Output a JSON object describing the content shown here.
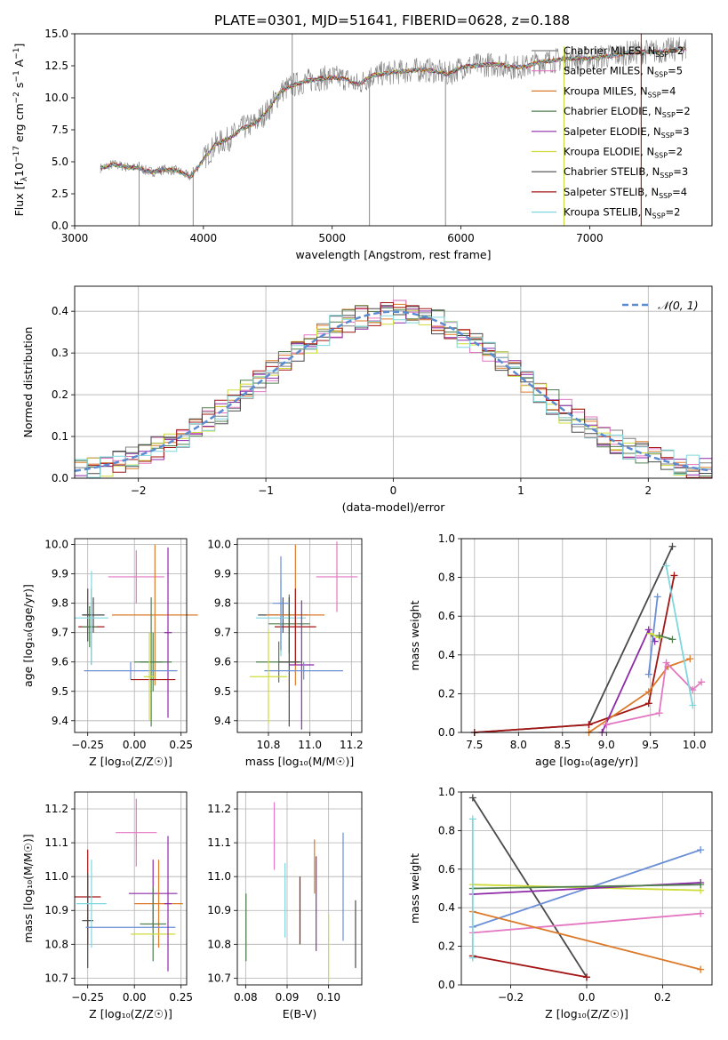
{
  "figure_title": "PLATE=0301, MJD=51641, FIBERID=0628, z=0.188",
  "palette": {
    "Chabrier MILES": "#808080",
    "Salpeter MILES": "#e377c2",
    "Kroupa MILES": "#dd7a2a",
    "Chabrier ELODIE": "#4f7f4f",
    "Salpeter ELODIE": "#8e2aa8",
    "Kroupa ELODIE": "#cddc39",
    "Chabrier STELIB": "#4a4a4a",
    "Salpeter STELIB": "#a31515",
    "Kroupa STELIB": "#7fd6dd",
    "Chabrier MILES (2)": "#6a8fd6",
    "gaussian": "#5b8bd0"
  },
  "chart_data": [
    {
      "id": "spectrum",
      "type": "line",
      "title": "PLATE=0301, MJD=51641, FIBERID=0628, z=0.188",
      "xlabel": "wavelength [Angstrom, rest frame]",
      "ylabel_parts": [
        "Flux [f",
        "λ",
        "10",
        "−17",
        " erg cm",
        "−2",
        " s",
        "−1",
        " A",
        "−1",
        "]"
      ],
      "xlim": [
        3000,
        7950
      ],
      "ylim": [
        0,
        15
      ],
      "xticks": [
        3000,
        4000,
        5000,
        6000,
        7000
      ],
      "xtick_labels": [
        "3000",
        "4000",
        "5000",
        "6000",
        "7000"
      ],
      "yticks": [
        0,
        2.5,
        5,
        7.5,
        10,
        12.5,
        15
      ],
      "ytick_labels": [
        "0.0",
        "2.5",
        "5.0",
        "7.5",
        "10.0",
        "12.5",
        "15.0"
      ],
      "legend_position": "right",
      "legend": [
        {
          "model": "Chabrier MILES",
          "n": "2"
        },
        {
          "model": "Salpeter MILES",
          "n": "5"
        },
        {
          "model": "Kroupa MILES",
          "n": "4"
        },
        {
          "model": "Chabrier ELODIE",
          "n": "2"
        },
        {
          "model": "Salpeter ELODIE",
          "n": "3"
        },
        {
          "model": "Kroupa ELODIE",
          "n": "2"
        },
        {
          "model": "Chabrier STELIB",
          "n": "3"
        },
        {
          "model": "Salpeter STELIB",
          "n": "4"
        },
        {
          "model": "Kroupa STELIB",
          "n": "2"
        }
      ],
      "legend_colors": [
        "#808080",
        "#e377c2",
        "#dd7a2a",
        "#4f7f4f",
        "#8e2aa8",
        "#cddc39",
        "#4a4a4a",
        "#a31515",
        "#7fd6dd"
      ],
      "model_curve": {
        "x": [
          3200,
          3300,
          3400,
          3500,
          3600,
          3700,
          3800,
          3900,
          4000,
          4100,
          4200,
          4300,
          4400,
          4500,
          4600,
          4700,
          4800,
          4900,
          5000,
          5100,
          5200,
          5300,
          5400,
          5500,
          5600,
          5700,
          5800,
          5900,
          6000,
          6100,
          6200,
          6300,
          6400,
          6500,
          6600,
          6700,
          6800,
          6900,
          7000,
          7100,
          7200,
          7300,
          7400,
          7500,
          7600,
          7700
        ],
        "y": [
          4.5,
          4.8,
          4.6,
          4.5,
          4.2,
          4.4,
          4.3,
          3.8,
          5.2,
          6.4,
          6.8,
          7.6,
          8.0,
          9.0,
          10.5,
          11.0,
          11.3,
          11.5,
          11.6,
          11.5,
          11.0,
          11.7,
          11.9,
          12.0,
          12.1,
          12.2,
          12.1,
          11.8,
          12.4,
          12.5,
          12.6,
          12.6,
          12.4,
          12.4,
          12.8,
          12.9,
          13.0,
          13.1,
          13.1,
          13.2,
          13.3,
          13.5,
          13.6,
          13.6,
          13.7,
          13.8
        ]
      },
      "vertical_spikes_x": [
        3500,
        3920,
        4690,
        5290,
        5880,
        6800,
        7400
      ],
      "data_range": [
        3200,
        7750
      ]
    },
    {
      "id": "residual-histogram",
      "type": "histogram",
      "xlabel": "(data-model)/error",
      "ylabel": "Normed distribution",
      "xlim": [
        -2.5,
        2.5
      ],
      "ylim": [
        0,
        0.46
      ],
      "xticks": [
        -2,
        -1,
        0,
        1,
        2
      ],
      "xtick_labels": [
        "−2",
        "−1",
        "0",
        "1",
        "2"
      ],
      "yticks": [
        0,
        0.1,
        0.2,
        0.3,
        0.4
      ],
      "ytick_labels": [
        "0.0",
        "0.1",
        "0.2",
        "0.3",
        "0.4"
      ],
      "bin_width": 0.1,
      "legend_label": "𝒩(0, 1)",
      "legend_position": "top-right",
      "grid": true
    },
    {
      "id": "age-vs-Z",
      "type": "errorbar",
      "xlabel": "Z [log₁₀(Z/Z☉)]",
      "ylabel": "age  [log₁₀(age/yr)]",
      "xlim": [
        -0.32,
        0.28
      ],
      "ylim": [
        9.36,
        10.02
      ],
      "xticks": [
        -0.25,
        0,
        0.25
      ],
      "xtick_labels": [
        "−0.25",
        "0.00",
        "0.25"
      ],
      "yticks": [
        9.4,
        9.5,
        9.6,
        9.7,
        9.8,
        9.9,
        10.0
      ],
      "ytick_labels": [
        "9.4",
        "9.5",
        "9.6",
        "9.7",
        "9.8",
        "9.9",
        "10.0"
      ],
      "points": [
        {
          "x": -0.25,
          "xerr": 0.03,
          "y": 9.76,
          "yerr": 0.09,
          "color": "#4a4a4a"
        },
        {
          "x": -0.23,
          "xerr": 0.07,
          "y": 9.72,
          "yerr": 0.13,
          "color": "#a31515"
        },
        {
          "x": -0.24,
          "xerr": 0.04,
          "y": 9.72,
          "yerr": 0.07,
          "color": "#4f7f4f"
        },
        {
          "x": -0.22,
          "xerr": 0.06,
          "y": 9.76,
          "yerr": 0.06,
          "color": "#4a4a4a"
        },
        {
          "x": -0.23,
          "xerr": 0.09,
          "y": 9.75,
          "yerr": 0.16,
          "color": "#7fd6dd"
        },
        {
          "x": 0.01,
          "xerr": 0.15,
          "y": 9.89,
          "yerr": 0.09,
          "color": "#e377c2"
        },
        {
          "x": 0.11,
          "xerr": 0.23,
          "y": 9.76,
          "yerr": 0.24,
          "color": "#dd7a2a"
        },
        {
          "x": 0.1,
          "xerr": 0.1,
          "y": 9.6,
          "yerr": 0.1,
          "color": "#4f7f4f"
        },
        {
          "x": 0.09,
          "xerr": 0.06,
          "y": 9.6,
          "yerr": 0.22,
          "color": "#4f7f4f"
        },
        {
          "x": 0.18,
          "xerr": 0.02,
          "y": 9.7,
          "yerr": 0.29,
          "color": "#8e2aa8"
        },
        {
          "x": -0.02,
          "xerr": 0.25,
          "y": 9.57,
          "yerr": 0.03,
          "color": "#6a8fd6"
        },
        {
          "x": 0.1,
          "xerr": 0.12,
          "y": 9.54,
          "yerr": 0.0,
          "color": "#a31515"
        },
        {
          "x": 0.08,
          "xerr": 0.03,
          "y": 9.55,
          "yerr": 0.15,
          "color": "#cddc39"
        }
      ]
    },
    {
      "id": "age-vs-mass",
      "type": "errorbar",
      "xlabel": "mass [log₁₀(M/M☉)]",
      "ylabel": "",
      "xlim": [
        10.65,
        11.25
      ],
      "ylim": [
        9.36,
        10.02
      ],
      "xticks": [
        10.8,
        11.0,
        11.2
      ],
      "xtick_labels": [
        "10.8",
        "11.0",
        "11.2"
      ],
      "yticks": [
        9.4,
        9.5,
        9.6,
        9.7,
        9.8,
        9.9,
        10.0
      ],
      "ytick_labels": [
        "9.4",
        "9.5",
        "9.6",
        "9.7",
        "9.8",
        "9.9",
        "10.0"
      ],
      "points": [
        {
          "x": 11.13,
          "xerr": 0.1,
          "y": 9.89,
          "yerr": 0.12,
          "color": "#e377c2"
        },
        {
          "x": 10.87,
          "xerr": 0.12,
          "y": 9.76,
          "yerr": 0.06,
          "color": "#4a4a4a"
        },
        {
          "x": 10.93,
          "xerr": 0.14,
          "y": 9.76,
          "yerr": 0.24,
          "color": "#dd7a2a"
        },
        {
          "x": 10.9,
          "xerr": 0.1,
          "y": 9.73,
          "yerr": 0.1,
          "color": "#4f7f4f"
        },
        {
          "x": 10.86,
          "xerr": 0.12,
          "y": 9.75,
          "yerr": 0.13,
          "color": "#7fd6dd"
        },
        {
          "x": 10.93,
          "xerr": 0.1,
          "y": 9.72,
          "yerr": 0.13,
          "color": "#a31515"
        },
        {
          "x": 10.85,
          "xerr": 0.11,
          "y": 9.6,
          "yerr": 0.07,
          "color": "#4f7f4f"
        },
        {
          "x": 10.9,
          "xerr": 0.05,
          "y": 9.6,
          "yerr": 0.22,
          "color": "#4a4a4a"
        },
        {
          "x": 10.96,
          "xerr": 0.06,
          "y": 9.59,
          "yerr": 0.22,
          "color": "#8e2aa8"
        },
        {
          "x": 10.97,
          "xerr": 0.19,
          "y": 9.57,
          "yerr": 0.03,
          "color": "#6a8fd6"
        },
        {
          "x": 10.8,
          "xerr": 0.09,
          "y": 9.55,
          "yerr": 0.16,
          "color": "#cddc39"
        },
        {
          "x": 10.86,
          "xerr": 0.04,
          "y": 9.8,
          "yerr": 0.16,
          "color": "#6a8fd6"
        }
      ]
    },
    {
      "id": "mass-weight-vs-age",
      "type": "line",
      "xlabel": "age  [log₁₀(age/yr)]",
      "ylabel": "mass weight",
      "xlim": [
        7.35,
        10.2
      ],
      "ylim": [
        0,
        1.0
      ],
      "xticks": [
        7.5,
        8.0,
        8.5,
        9.0,
        9.5,
        10.0
      ],
      "xtick_labels": [
        "7.5",
        "8.0",
        "8.5",
        "9.0",
        "9.5",
        "10.0"
      ],
      "yticks": [
        0,
        0.2,
        0.4,
        0.6,
        0.8,
        1.0
      ],
      "ytick_labels": [
        "0.0",
        "0.2",
        "0.4",
        "0.6",
        "0.8",
        "1.0"
      ],
      "series": [
        {
          "color": "#4a4a4a",
          "x": [
            7.5,
            8.8,
            9.75
          ],
          "y": [
            0.0,
            0.04,
            0.96
          ]
        },
        {
          "color": "#a31515",
          "x": [
            7.5,
            8.8,
            9.48,
            9.77
          ],
          "y": [
            0.0,
            0.04,
            0.15,
            0.81
          ]
        },
        {
          "color": "#dd7a2a",
          "x": [
            8.8,
            9.48,
            9.7,
            9.95
          ],
          "y": [
            0.0,
            0.21,
            0.34,
            0.38
          ]
        },
        {
          "color": "#8e2aa8",
          "x": [
            8.95,
            9.48,
            9.55
          ],
          "y": [
            0.0,
            0.53,
            0.47
          ]
        },
        {
          "color": "#e377c2",
          "x": [
            9.0,
            9.6,
            9.68,
            9.98,
            10.08
          ],
          "y": [
            0.04,
            0.1,
            0.36,
            0.22,
            0.26
          ]
        },
        {
          "color": "#7fd6dd",
          "x": [
            9.68,
            9.98
          ],
          "y": [
            0.86,
            0.14
          ]
        },
        {
          "color": "#6a8fd6",
          "x": [
            9.48,
            9.58
          ],
          "y": [
            0.3,
            0.7
          ]
        },
        {
          "color": "#cddc39",
          "x": [
            9.5,
            9.6
          ],
          "y": [
            0.51,
            0.49
          ]
        },
        {
          "color": "#4f7f4f",
          "x": [
            9.6,
            9.75
          ],
          "y": [
            0.5,
            0.48
          ]
        }
      ]
    },
    {
      "id": "mass-vs-Z",
      "type": "errorbar",
      "xlabel": "Z [log₁₀(Z/Z☉)]",
      "ylabel": "mass [log₁₀(M/M☉)]",
      "xlim": [
        -0.32,
        0.28
      ],
      "ylim": [
        10.68,
        11.25
      ],
      "xticks": [
        -0.25,
        0,
        0.25
      ],
      "xtick_labels": [
        "−0.25",
        "0.00",
        "0.25"
      ],
      "yticks": [
        10.7,
        10.8,
        10.9,
        11.0,
        11.1,
        11.2
      ],
      "ytick_labels": [
        "10.7",
        "10.8",
        "10.9",
        "11.0",
        "11.1",
        "11.2"
      ],
      "points": [
        {
          "x": 0.01,
          "xerr": 0.11,
          "y": 11.13,
          "yerr": 0.1,
          "color": "#e377c2"
        },
        {
          "x": -0.25,
          "xerr": 0.07,
          "y": 10.94,
          "yerr": 0.14,
          "color": "#a31515"
        },
        {
          "x": -0.25,
          "xerr": 0.03,
          "y": 10.87,
          "yerr": 0.14,
          "color": "#4a4a4a"
        },
        {
          "x": -0.23,
          "xerr": 0.08,
          "y": 10.92,
          "yerr": 0.13,
          "color": "#7fd6dd"
        },
        {
          "x": 0.1,
          "xerr": 0.13,
          "y": 10.95,
          "yerr": 0.1,
          "color": "#8e2aa8"
        },
        {
          "x": 0.13,
          "xerr": 0.13,
          "y": 10.92,
          "yerr": 0.13,
          "color": "#dd7a2a"
        },
        {
          "x": -0.02,
          "xerr": 0.24,
          "y": 10.85,
          "yerr": 0.0,
          "color": "#6a8fd6"
        },
        {
          "x": 0.1,
          "xerr": 0.07,
          "y": 10.86,
          "yerr": 0.11,
          "color": "#4f7f4f"
        },
        {
          "x": 0.1,
          "xerr": 0.12,
          "y": 10.83,
          "yerr": 0.0,
          "color": "#cddc39"
        },
        {
          "x": 0.18,
          "xerr": 0.02,
          "y": 10.92,
          "yerr": 0.2,
          "color": "#8e2aa8"
        }
      ]
    },
    {
      "id": "mass-vs-EBV",
      "type": "errorbar",
      "xlabel": "E(B-V)",
      "ylabel": "",
      "xlim": [
        0.078,
        0.108
      ],
      "ylim": [
        10.68,
        11.25
      ],
      "xticks": [
        0.08,
        0.09,
        0.1
      ],
      "xtick_labels": [
        "0.08",
        "0.09",
        "0.10"
      ],
      "yticks": [
        10.7,
        10.8,
        10.9,
        11.0,
        11.1,
        11.2
      ],
      "ytick_labels": [
        "10.7",
        "10.8",
        "10.9",
        "11.0",
        "11.1",
        "11.2"
      ],
      "points": [
        {
          "x": 0.0801,
          "xerr": 0,
          "y": 10.85,
          "yerr": 0.1,
          "color": "#4f7f4f"
        },
        {
          "x": 0.0869,
          "xerr": 0,
          "y": 11.12,
          "yerr": 0.1,
          "color": "#e377c2"
        },
        {
          "x": 0.0895,
          "xerr": 0,
          "y": 10.93,
          "yerr": 0.11,
          "color": "#7fd6dd"
        },
        {
          "x": 0.0931,
          "xerr": 0,
          "y": 10.9,
          "yerr": 0.1,
          "color": "#a31515"
        },
        {
          "x": 0.0966,
          "xerr": 0,
          "y": 11.03,
          "yerr": 0.08,
          "color": "#dd7a2a"
        },
        {
          "x": 0.097,
          "xerr": 0,
          "y": 10.92,
          "yerr": 0.14,
          "color": "#8e2aa8"
        },
        {
          "x": 0.1,
          "xerr": 0,
          "y": 10.79,
          "yerr": 0.1,
          "color": "#cddc39"
        },
        {
          "x": 0.1035,
          "xerr": 0,
          "y": 10.97,
          "yerr": 0.16,
          "color": "#6a8fd6"
        },
        {
          "x": 0.1065,
          "xerr": 0,
          "y": 10.83,
          "yerr": 0.1,
          "color": "#4a4a4a"
        }
      ]
    },
    {
      "id": "mass-weight-vs-Z",
      "type": "line",
      "xlabel": "Z [log₁₀(Z/Z☉)]",
      "ylabel": "mass weight",
      "xlim": [
        -0.33,
        0.33
      ],
      "ylim": [
        0,
        1.0
      ],
      "xticks": [
        -0.2,
        0,
        0.2
      ],
      "xtick_labels": [
        "−0.2",
        "0.0",
        "0.2"
      ],
      "yticks": [
        0,
        0.2,
        0.4,
        0.6,
        0.8,
        1.0
      ],
      "ytick_labels": [
        "0.0",
        "0.2",
        "0.4",
        "0.6",
        "0.8",
        "1.0"
      ],
      "series": [
        {
          "color": "#4a4a4a",
          "x": [
            -0.3,
            0.0
          ],
          "y": [
            0.97,
            0.04
          ]
        },
        {
          "color": "#a31515",
          "x": [
            -0.3,
            0.0
          ],
          "y": [
            0.15,
            0.04
          ]
        },
        {
          "color": "#6a8fd6",
          "x": [
            -0.3,
            0.3
          ],
          "y": [
            0.3,
            0.7
          ]
        },
        {
          "color": "#e377c2",
          "x": [
            -0.3,
            0.3
          ],
          "y": [
            0.27,
            0.37
          ]
        },
        {
          "color": "#dd7a2a",
          "x": [
            -0.3,
            0.3
          ],
          "y": [
            0.38,
            0.08
          ]
        },
        {
          "color": "#cddc39",
          "x": [
            -0.3,
            0.3
          ],
          "y": [
            0.52,
            0.49
          ]
        },
        {
          "color": "#8e2aa8",
          "x": [
            -0.3,
            0.3
          ],
          "y": [
            0.47,
            0.53
          ]
        },
        {
          "color": "#4f7f4f",
          "x": [
            -0.3,
            0.3
          ],
          "y": [
            0.5,
            0.52
          ]
        },
        {
          "color": "#7fd6dd",
          "x": [
            -0.3,
            -0.3
          ],
          "y": [
            0.86,
            0.14
          ]
        }
      ]
    }
  ]
}
